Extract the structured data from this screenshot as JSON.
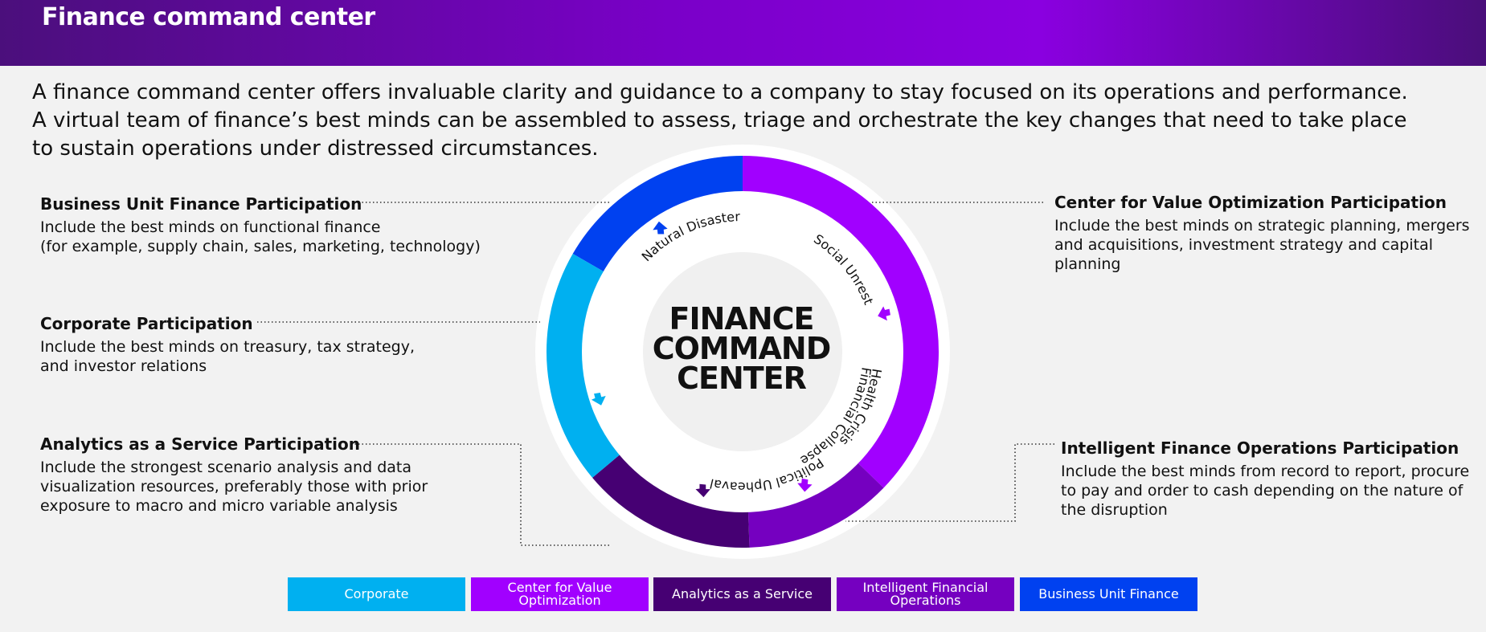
{
  "header": {
    "title": "Finance command center"
  },
  "intro": {
    "lines": [
      "A finance command center offers invaluable clarity and guidance to a company to stay focused on its operations and performance.",
      "A virtual team of finance’s best minds can be assembled to assess, triage and orchestrate the key changes that need to take place",
      "to sustain operations under distressed circumstances."
    ]
  },
  "blocks": {
    "business_unit": {
      "title": "Business Unit Finance Participation",
      "lines": [
        "Include the best minds on functional finance",
        "(for example, supply chain, sales, marketing, technology)"
      ]
    },
    "corporate": {
      "title": "Corporate Participation",
      "lines": [
        "Include the best minds on treasury, tax strategy,",
        "and investor relations"
      ]
    },
    "analytics": {
      "title": "Analytics as a Service Participation",
      "lines": [
        "Include the strongest scenario analysis and data",
        "visualization resources, preferably those with prior",
        "exposure to macro and micro variable analysis"
      ]
    },
    "value_optimization": {
      "title": "Center for Value Optimization Participation",
      "lines": [
        "Include the best minds on strategic planning, mergers",
        "and acquisitions, investment strategy and capital",
        "planning"
      ]
    },
    "intelligent_ops": {
      "title": "Intelligent Finance Operations Participation",
      "lines": [
        "Include the best minds from record to report, procure",
        "to pay and order to cash depending on the nature of",
        "the disruption"
      ]
    }
  },
  "diagram": {
    "center_title": [
      "FINANCE",
      "COMMAND",
      "CENTER"
    ],
    "crises": {
      "health": "Health Crisis",
      "political": "Political Upheaval",
      "financial": "Financial Collapse",
      "natural": "Natural Disaster",
      "social": "Social Unrest"
    }
  },
  "legend": [
    {
      "label": "Corporate",
      "color": "#00b0f0"
    },
    {
      "label": "Center for Value Optimization",
      "color": "#a100ff"
    },
    {
      "label": "Analytics as a Service",
      "color": "#460073"
    },
    {
      "label": "Intelligent Financial Operations",
      "color": "#7500c0"
    },
    {
      "label": "Business Unit Finance",
      "color": "#0041f0"
    }
  ],
  "colors": {
    "corporate": "#00b0f0",
    "value_optimization": "#a100ff",
    "analytics": "#460073",
    "intelligent_ops": "#7500c0",
    "business_unit": "#0041f0"
  }
}
